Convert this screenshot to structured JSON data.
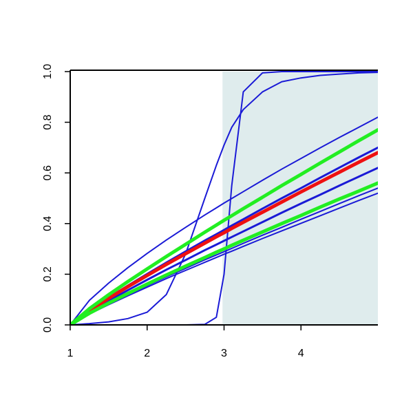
{
  "chart_data": {
    "type": "line",
    "x": [
      1,
      1.25,
      1.5,
      1.75,
      2,
      2.25,
      2.5,
      2.75,
      2.9,
      3,
      3.1,
      3.25,
      3.5,
      3.75,
      4,
      4.25,
      4.5,
      4.75,
      5
    ],
    "xlim": [
      1,
      5
    ],
    "xticks": [
      1,
      2,
      3,
      4
    ],
    "ylim": [
      0,
      1
    ],
    "yticks": [
      {
        "value": 0,
        "label": "0.0"
      },
      {
        "value": 0.2,
        "label": "0.2"
      },
      {
        "value": 0.4,
        "label": "0.4"
      },
      {
        "value": 0.6,
        "label": "0.6"
      },
      {
        "value": 0.8,
        "label": "0.8"
      },
      {
        "value": 1,
        "label": "1.0"
      }
    ],
    "shaded_region": {
      "xlim": [
        2.98,
        5
      ],
      "ylim": [
        0,
        1
      ],
      "color": "#dfeced"
    },
    "series": [
      {
        "color": "#1a1ad6",
        "line_width": 2,
        "values": [
          0,
          0,
          0,
          0,
          0,
          0,
          0,
          0.002,
          0.03,
          0.2,
          0.55,
          0.92,
          0.995,
          1,
          1,
          1,
          1,
          1,
          1
        ]
      },
      {
        "color": "#1a1ad6",
        "line_width": 2,
        "values": [
          0,
          0.005,
          0.012,
          0.025,
          0.05,
          0.12,
          0.28,
          0.5,
          0.63,
          0.71,
          0.78,
          0.85,
          0.92,
          0.96,
          0.975,
          0.985,
          0.99,
          0.995,
          0.997
        ]
      },
      {
        "color": "#1a1ad6",
        "line_width": 2,
        "values": [
          0,
          0.097,
          0.165,
          0.226,
          0.282,
          0.335,
          0.385,
          0.434,
          0.462,
          0.481,
          0.499,
          0.526,
          0.571,
          0.615,
          0.657,
          0.699,
          0.74,
          0.78,
          0.82
        ]
      },
      {
        "color": "#1a1ad6",
        "line_width": 3,
        "values": [
          0,
          0.058,
          0.108,
          0.155,
          0.201,
          0.246,
          0.29,
          0.333,
          0.358,
          0.375,
          0.392,
          0.417,
          0.459,
          0.5,
          0.54,
          0.581,
          0.621,
          0.661,
          0.7
        ]
      },
      {
        "color": "#1a1ad6",
        "line_width": 3,
        "values": [
          0,
          0.051,
          0.095,
          0.137,
          0.178,
          0.218,
          0.256,
          0.295,
          0.317,
          0.332,
          0.347,
          0.369,
          0.406,
          0.443,
          0.479,
          0.514,
          0.55,
          0.585,
          0.62
        ]
      },
      {
        "color": "#1a1ad6",
        "line_width": 2,
        "values": [
          0,
          0.045,
          0.083,
          0.12,
          0.155,
          0.19,
          0.223,
          0.257,
          0.276,
          0.289,
          0.302,
          0.322,
          0.354,
          0.385,
          0.417,
          0.448,
          0.479,
          0.51,
          0.54
        ]
      },
      {
        "color": "#1a1ad6",
        "line_width": 2,
        "values": [
          0,
          0.043,
          0.08,
          0.115,
          0.149,
          0.183,
          0.215,
          0.247,
          0.266,
          0.279,
          0.291,
          0.31,
          0.341,
          0.371,
          0.401,
          0.431,
          0.461,
          0.491,
          0.52
        ]
      },
      {
        "color": "#ee1111",
        "line_width": 5,
        "values": [
          0,
          0.056,
          0.105,
          0.151,
          0.195,
          0.239,
          0.281,
          0.323,
          0.348,
          0.364,
          0.381,
          0.405,
          0.445,
          0.485,
          0.525,
          0.564,
          0.603,
          0.642,
          0.68
        ]
      },
      {
        "color": "#22ee22",
        "line_width": 5,
        "values": [
          0,
          0.064,
          0.119,
          0.171,
          0.221,
          0.27,
          0.318,
          0.366,
          0.394,
          0.413,
          0.431,
          0.459,
          0.504,
          0.55,
          0.594,
          0.639,
          0.683,
          0.727,
          0.77
        ]
      },
      {
        "color": "#22ee22",
        "line_width": 5,
        "values": [
          0,
          0.046,
          0.086,
          0.124,
          0.161,
          0.197,
          0.232,
          0.266,
          0.287,
          0.3,
          0.314,
          0.334,
          0.367,
          0.4,
          0.432,
          0.465,
          0.497,
          0.528,
          0.56
        ]
      }
    ]
  }
}
